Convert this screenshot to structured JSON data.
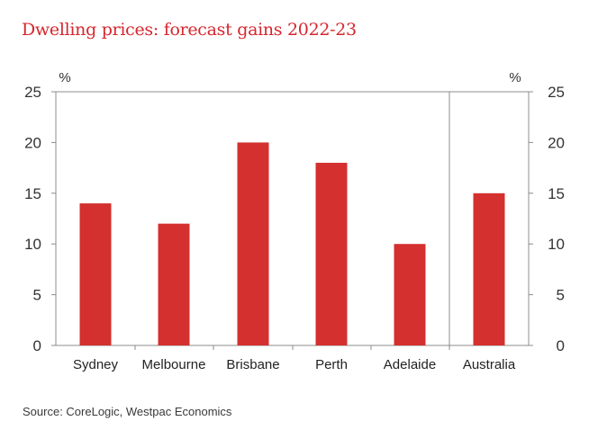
{
  "title": "Dwelling prices: forecast gains 2022-23",
  "source": "Source: CoreLogic, Westpac Economics",
  "chart_data": {
    "type": "bar",
    "categories": [
      "Sydney",
      "Melbourne",
      "Brisbane",
      "Perth",
      "Adelaide",
      "Australia"
    ],
    "values": [
      14,
      12,
      20,
      18,
      10,
      15
    ],
    "y_unit_left": "%",
    "y_unit_right": "%",
    "ylim": [
      0,
      25
    ],
    "yticks": [
      "0",
      "5",
      "10",
      "15",
      "20",
      "25"
    ],
    "grid": false,
    "bar_color": "#d3302f",
    "divider_after_category": "Adelaide"
  }
}
